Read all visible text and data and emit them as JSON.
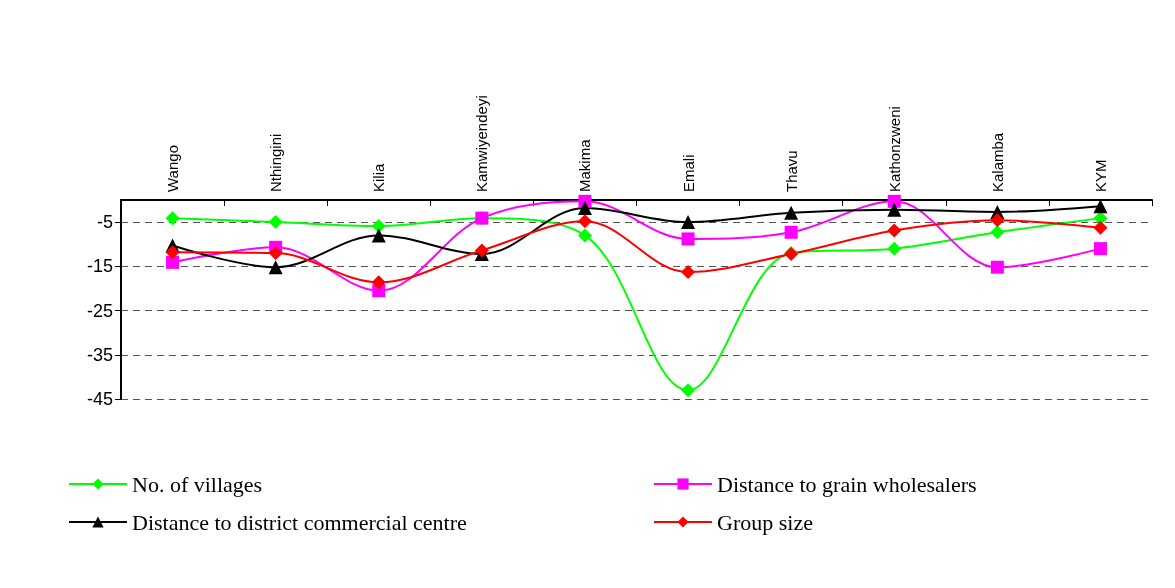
{
  "chart_data": {
    "type": "line",
    "categories": [
      "Wango",
      "Nthingini",
      "Kilia",
      "Kamwiyendeyi",
      "Makima",
      "Emali",
      "Thavu",
      "Kathonzweni",
      "Kalamba",
      "KYM"
    ],
    "series": [
      {
        "name": "No. of villages",
        "color": "#00ff00",
        "marker": "diamond",
        "values": [
          -4.1,
          -5,
          -5.9,
          -4.1,
          -8,
          -43,
          -12,
          -11,
          -7.3,
          -4.1
        ]
      },
      {
        "name": "Distance to grain wholesalers",
        "color": "#ff00ff",
        "marker": "square",
        "values": [
          -14.1,
          -10.7,
          -20.5,
          -4.1,
          -0.3,
          -8.8,
          -7.3,
          -0.3,
          -15.2,
          -11
        ]
      },
      {
        "name": "Distance to district commercial centre",
        "color": "#000000",
        "marker": "triangle",
        "values": [
          -10.3,
          -15.2,
          -8,
          -12.2,
          -1.8,
          -5,
          -2.9,
          -2.2,
          -2.7,
          -1.4
        ]
      },
      {
        "name": "Group size",
        "color": "#ff0000",
        "marker": "diamond",
        "values": [
          -11.8,
          -12,
          -18.6,
          -11.4,
          -4.8,
          -16.3,
          -12.2,
          -6.9,
          -4.6,
          -6.3
        ]
      }
    ],
    "ylim": [
      -45,
      0
    ],
    "yticks": [
      -5,
      -15,
      -25,
      -35,
      -45
    ],
    "grid": "y",
    "legend": "bottom"
  }
}
